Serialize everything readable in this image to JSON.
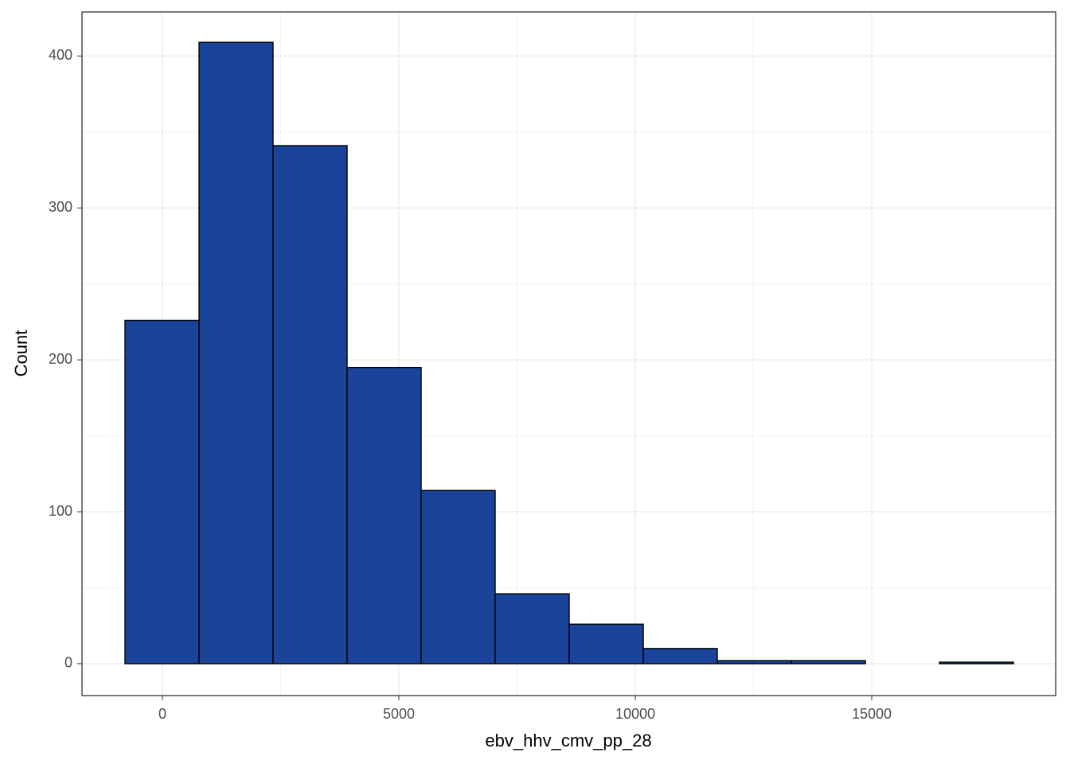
{
  "chart_data": {
    "type": "histogram",
    "x_label": "ebv_hhv_cmv_pp_28",
    "y_label": "Count",
    "bins": [
      -791,
      775,
      2340,
      3906,
      5472,
      7037,
      8603,
      10169,
      11734,
      13300,
      14866,
      16431,
      17997
    ],
    "values": [
      226,
      409,
      341,
      195,
      114,
      46,
      26,
      10,
      2,
      2,
      0,
      1
    ],
    "color": "#1a4499",
    "edge_color": "#000000",
    "xlim": [
      -1700,
      18889
    ],
    "xticks": [
      0,
      5000,
      10000,
      15000
    ],
    "ylim": [
      -21,
      429
    ],
    "yticks": [
      0,
      100,
      200,
      300,
      400
    ],
    "grid": true
  }
}
